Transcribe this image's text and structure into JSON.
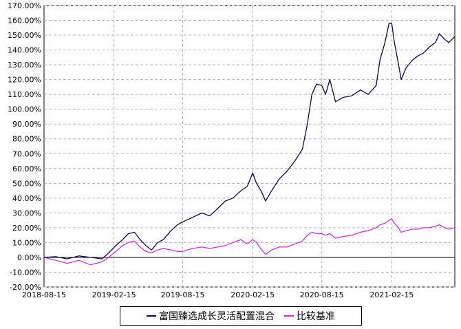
{
  "chart_data": {
    "type": "line",
    "title": "",
    "xlabel": "",
    "ylabel": "",
    "x_ticks": [
      "2018-08-15",
      "2019-02-15",
      "2019-08-15",
      "2020-02-15",
      "2020-08-15",
      "2021-02-15"
    ],
    "y_ticks": [
      "170.00%",
      "160.00%",
      "150.00%",
      "140.00%",
      "130.00%",
      "120.00%",
      "110.00%",
      "100.00%",
      "90.00%",
      "80.00%",
      "70.00%",
      "60.00%",
      "50.00%",
      "40.00%",
      "30.00%",
      "20.00%",
      "10.00%",
      "0.00%",
      "-10.00%",
      "-20.00%"
    ],
    "ylim": [
      -20,
      170
    ],
    "xlim": [
      "2018-08-15",
      "2021-07-31"
    ],
    "grid": true,
    "legend_position": "bottom",
    "series": [
      {
        "name": "富国臻选成长灵活配置混合",
        "color": "#0a0a3c",
        "points": [
          [
            "2018-08-15",
            0
          ],
          [
            "2018-09-15",
            0.5
          ],
          [
            "2018-10-15",
            -1
          ],
          [
            "2018-11-15",
            1
          ],
          [
            "2018-12-15",
            0
          ],
          [
            "2019-01-15",
            -1
          ],
          [
            "2019-02-01",
            3
          ],
          [
            "2019-02-20",
            8
          ],
          [
            "2019-03-10",
            12
          ],
          [
            "2019-03-25",
            16
          ],
          [
            "2019-04-10",
            17
          ],
          [
            "2019-04-25",
            12
          ],
          [
            "2019-05-10",
            8
          ],
          [
            "2019-05-25",
            5
          ],
          [
            "2019-06-10",
            10
          ],
          [
            "2019-06-25",
            12
          ],
          [
            "2019-07-15",
            18
          ],
          [
            "2019-08-01",
            22
          ],
          [
            "2019-08-15",
            24
          ],
          [
            "2019-09-10",
            27
          ],
          [
            "2019-10-05",
            30
          ],
          [
            "2019-10-25",
            28
          ],
          [
            "2019-11-15",
            33
          ],
          [
            "2019-12-05",
            38
          ],
          [
            "2019-12-25",
            40
          ],
          [
            "2020-01-15",
            45
          ],
          [
            "2020-02-01",
            48
          ],
          [
            "2020-02-15",
            57
          ],
          [
            "2020-02-25",
            50
          ],
          [
            "2020-03-10",
            44
          ],
          [
            "2020-03-20",
            38
          ],
          [
            "2020-04-05",
            45
          ],
          [
            "2020-04-25",
            53
          ],
          [
            "2020-05-15",
            58
          ],
          [
            "2020-06-05",
            65
          ],
          [
            "2020-06-25",
            73
          ],
          [
            "2020-07-08",
            90
          ],
          [
            "2020-07-20",
            110
          ],
          [
            "2020-08-01",
            117
          ],
          [
            "2020-08-15",
            116
          ],
          [
            "2020-08-25",
            110
          ],
          [
            "2020-09-05",
            120
          ],
          [
            "2020-09-20",
            105
          ],
          [
            "2020-10-10",
            108
          ],
          [
            "2020-11-01",
            109
          ],
          [
            "2020-11-25",
            113
          ],
          [
            "2020-12-15",
            110
          ],
          [
            "2021-01-05",
            116
          ],
          [
            "2021-01-15",
            133
          ],
          [
            "2021-01-28",
            145
          ],
          [
            "2021-02-08",
            158
          ],
          [
            "2021-02-15",
            158
          ],
          [
            "2021-02-22",
            145
          ],
          [
            "2021-03-05",
            130
          ],
          [
            "2021-03-12",
            120
          ],
          [
            "2021-03-25",
            128
          ],
          [
            "2021-04-10",
            133
          ],
          [
            "2021-04-25",
            136
          ],
          [
            "2021-05-10",
            138
          ],
          [
            "2021-05-25",
            142
          ],
          [
            "2021-06-10",
            145
          ],
          [
            "2021-06-20",
            151
          ],
          [
            "2021-07-05",
            147
          ],
          [
            "2021-07-15",
            145
          ],
          [
            "2021-07-31",
            149
          ]
        ]
      },
      {
        "name": "比较基准",
        "color": "#cc33cc",
        "points": [
          [
            "2018-08-15",
            0
          ],
          [
            "2018-09-15",
            -2
          ],
          [
            "2018-10-15",
            -4
          ],
          [
            "2018-11-15",
            -2
          ],
          [
            "2018-12-15",
            -5
          ],
          [
            "2019-01-15",
            -3
          ],
          [
            "2019-02-01",
            0
          ],
          [
            "2019-02-20",
            4
          ],
          [
            "2019-03-10",
            8
          ],
          [
            "2019-03-25",
            10
          ],
          [
            "2019-04-10",
            11
          ],
          [
            "2019-04-25",
            7
          ],
          [
            "2019-05-10",
            4
          ],
          [
            "2019-05-25",
            3
          ],
          [
            "2019-06-10",
            5
          ],
          [
            "2019-06-25",
            6
          ],
          [
            "2019-07-15",
            5
          ],
          [
            "2019-08-01",
            4
          ],
          [
            "2019-08-15",
            4
          ],
          [
            "2019-09-10",
            6
          ],
          [
            "2019-10-05",
            7
          ],
          [
            "2019-10-25",
            6
          ],
          [
            "2019-11-15",
            7
          ],
          [
            "2019-12-05",
            8
          ],
          [
            "2019-12-25",
            10
          ],
          [
            "2020-01-15",
            12
          ],
          [
            "2020-02-01",
            9
          ],
          [
            "2020-02-15",
            12
          ],
          [
            "2020-02-25",
            10
          ],
          [
            "2020-03-10",
            5
          ],
          [
            "2020-03-20",
            2
          ],
          [
            "2020-04-05",
            5
          ],
          [
            "2020-04-25",
            7
          ],
          [
            "2020-05-15",
            7
          ],
          [
            "2020-06-05",
            9
          ],
          [
            "2020-06-25",
            11
          ],
          [
            "2020-07-08",
            15
          ],
          [
            "2020-07-20",
            17
          ],
          [
            "2020-08-01",
            16
          ],
          [
            "2020-08-15",
            16
          ],
          [
            "2020-08-25",
            15
          ],
          [
            "2020-09-05",
            16
          ],
          [
            "2020-09-20",
            13
          ],
          [
            "2020-10-10",
            14
          ],
          [
            "2020-11-01",
            15
          ],
          [
            "2020-11-25",
            17
          ],
          [
            "2020-12-15",
            18
          ],
          [
            "2021-01-05",
            20
          ],
          [
            "2021-01-15",
            22
          ],
          [
            "2021-01-28",
            23
          ],
          [
            "2021-02-08",
            25
          ],
          [
            "2021-02-15",
            26
          ],
          [
            "2021-02-22",
            23
          ],
          [
            "2021-03-05",
            20
          ],
          [
            "2021-03-12",
            17
          ],
          [
            "2021-03-25",
            18
          ],
          [
            "2021-04-10",
            19
          ],
          [
            "2021-04-25",
            19
          ],
          [
            "2021-05-10",
            20
          ],
          [
            "2021-05-25",
            20
          ],
          [
            "2021-06-10",
            21
          ],
          [
            "2021-06-20",
            22
          ],
          [
            "2021-07-05",
            20
          ],
          [
            "2021-07-15",
            19
          ],
          [
            "2021-07-31",
            20
          ]
        ]
      }
    ]
  }
}
